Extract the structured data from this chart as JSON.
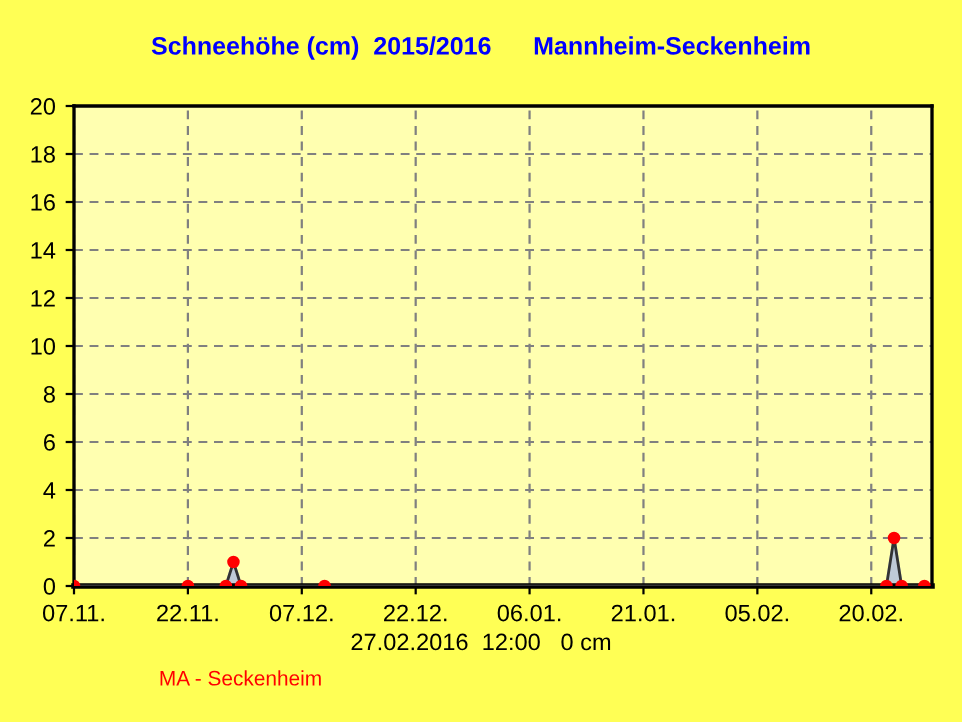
{
  "chart_data": {
    "type": "area",
    "title": "Schneehöhe (cm)  2015/2016      Mannheim-Seckenheim",
    "series": [
      {
        "color": "#333333",
        "x": [
          "2015-11-07",
          "2015-11-22",
          "2015-11-27",
          "2015-11-28",
          "2015-11-29",
          "2015-12-10",
          "2016-02-22",
          "2016-02-23",
          "2016-02-24",
          "2016-02-27"
        ],
        "values": [
          0,
          0,
          0,
          1,
          0,
          0,
          0,
          2,
          0,
          0
        ]
      }
    ],
    "xlim": [
      "2015-11-07",
      "2016-02-28"
    ],
    "xticks": [
      {
        "value": "2015-11-07",
        "label": "07.11."
      },
      {
        "value": "2015-11-22",
        "label": "22.11."
      },
      {
        "value": "2015-12-07",
        "label": "07.12."
      },
      {
        "value": "2015-12-22",
        "label": "22.12."
      },
      {
        "value": "2016-01-06",
        "label": "06.01."
      },
      {
        "value": "2016-01-21",
        "label": "21.01."
      },
      {
        "value": "2016-02-05",
        "label": "05.02."
      },
      {
        "value": "2016-02-20",
        "label": "20.02."
      }
    ],
    "ylim": [
      0,
      20
    ],
    "yticks": [
      0,
      2,
      4,
      6,
      8,
      10,
      12,
      14,
      16,
      18,
      20
    ],
    "grid": true,
    "marker": "circle",
    "legend": false,
    "annotations": [
      "27.02.2016  12:00   0 cm",
      "MA - Seckenheim"
    ]
  }
}
